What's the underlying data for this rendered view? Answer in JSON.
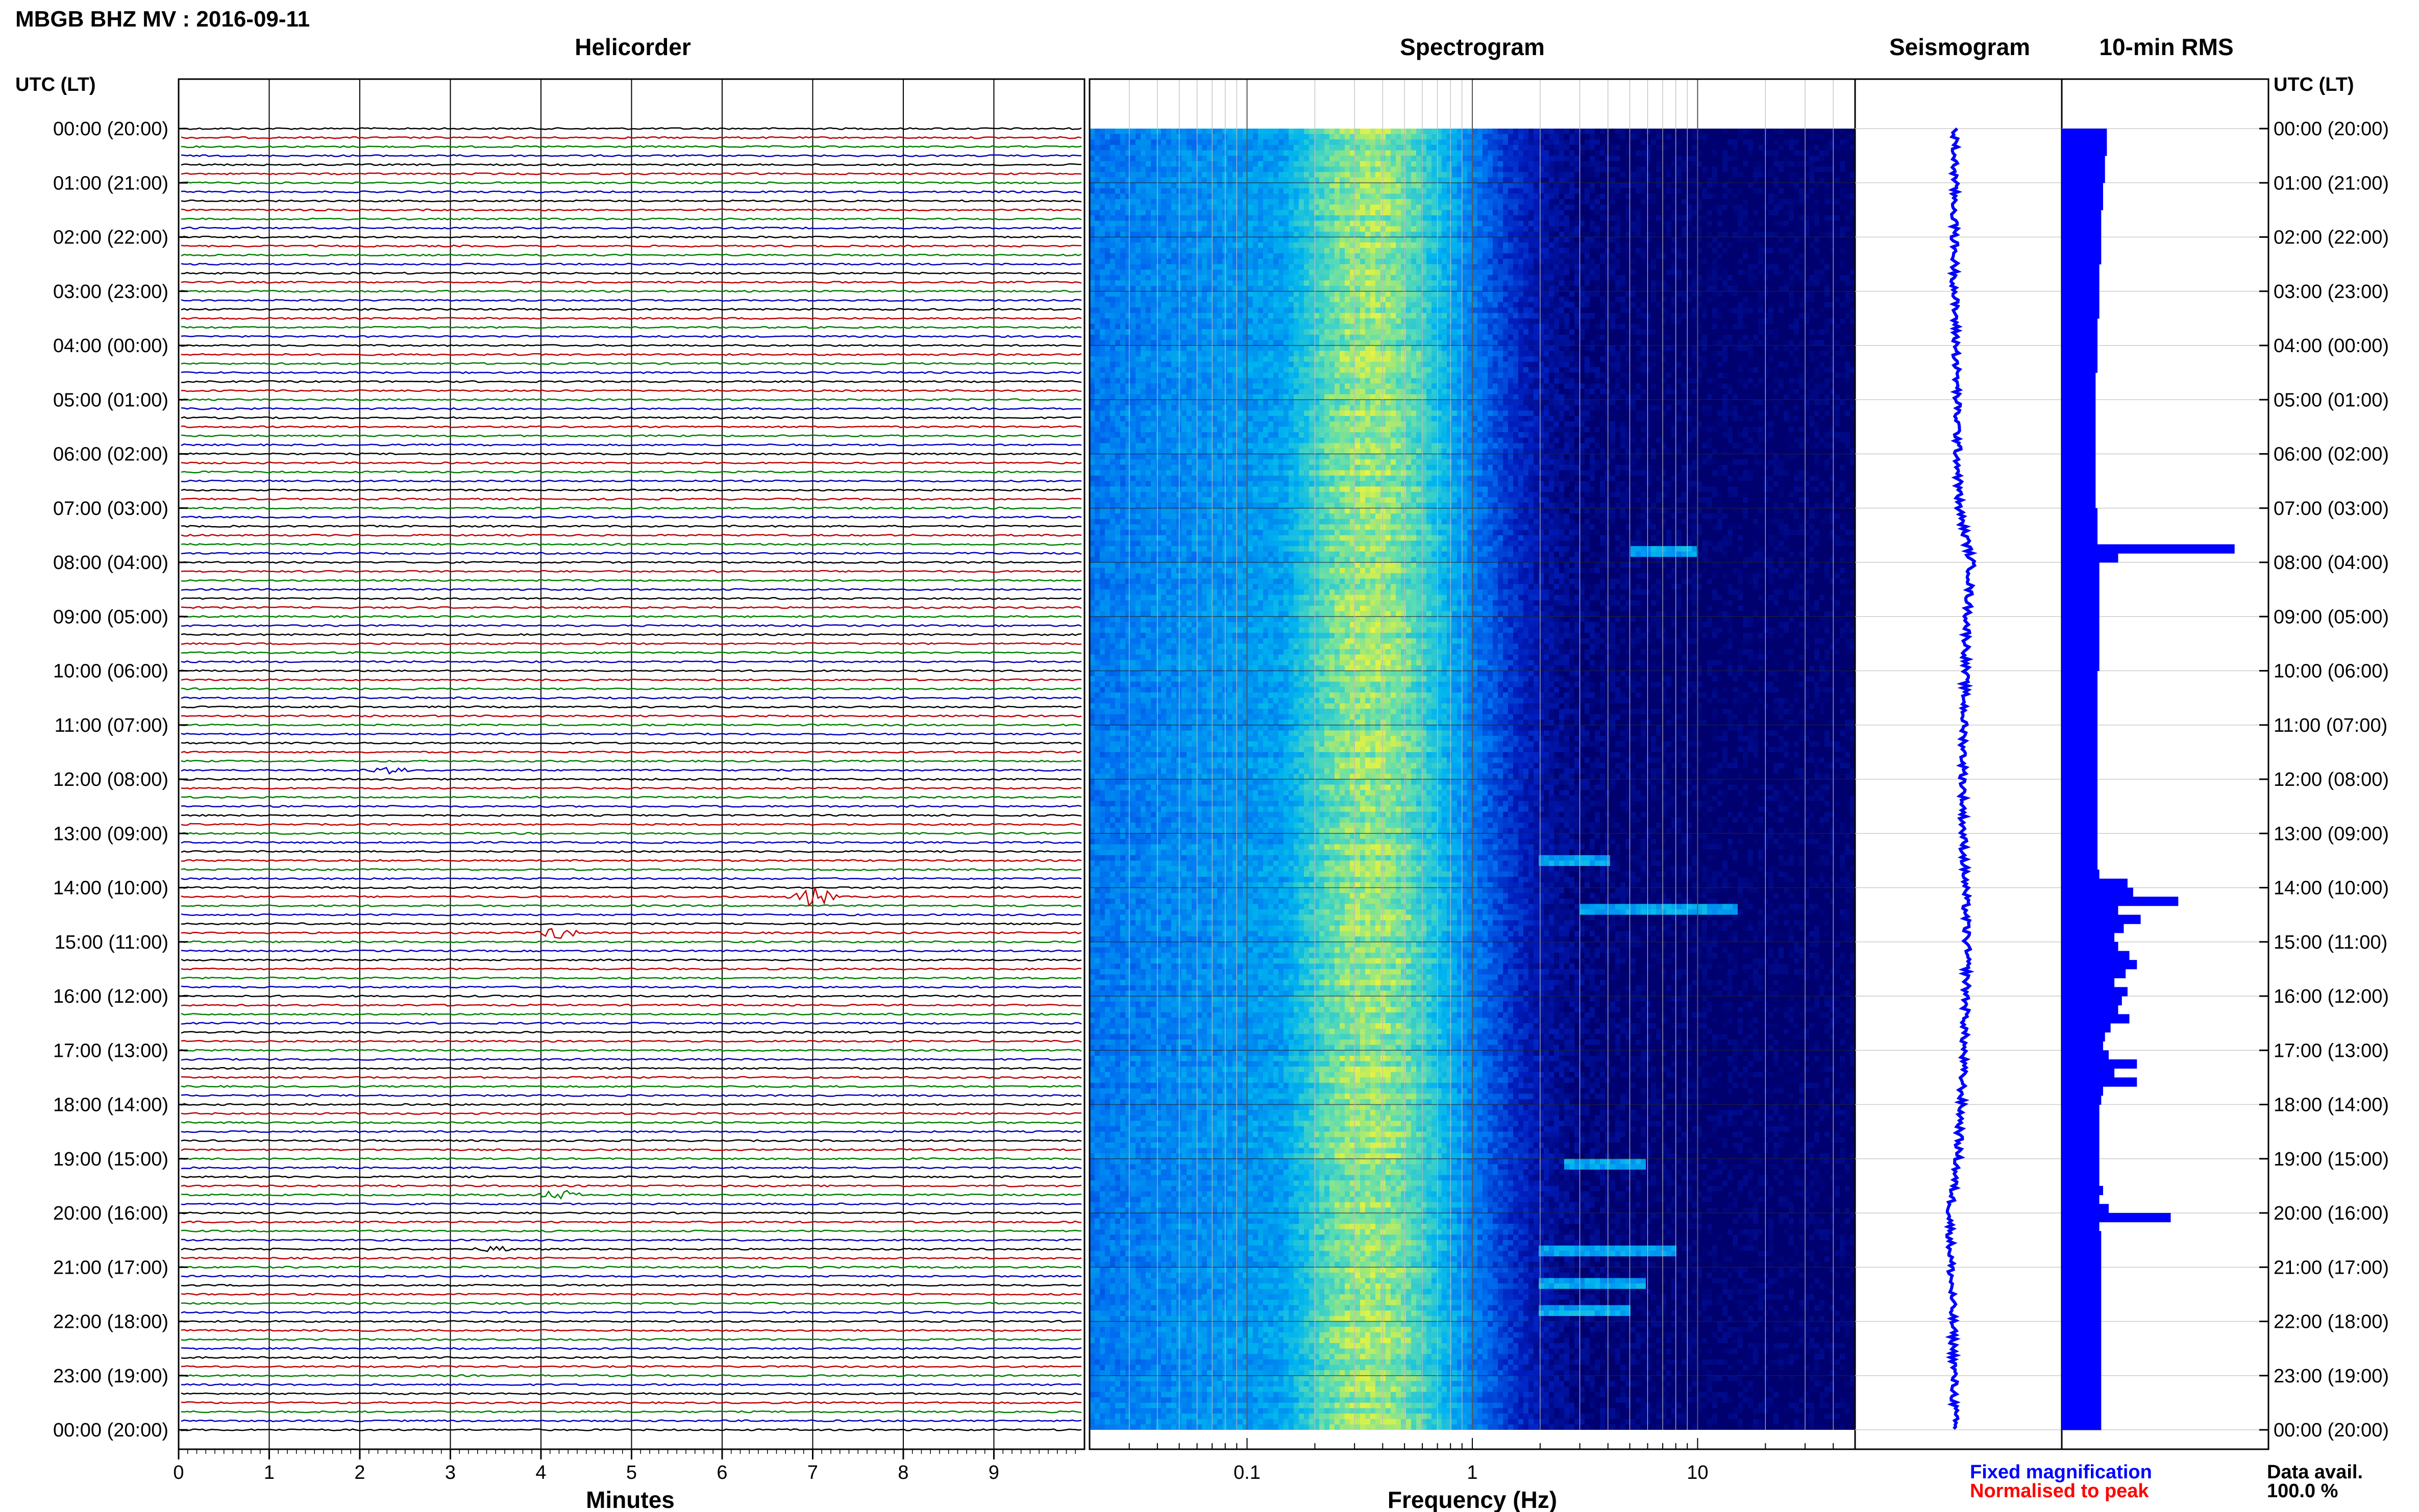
{
  "title": "MBGB BHZ MV : 2016-09-11",
  "left_header": "UTC (LT)",
  "right_header": "UTC (LT)",
  "panels": {
    "helicorder": "Helicorder",
    "spectrogram": "Spectrogram",
    "seismogram": "Seismogram",
    "rms": "10-min RMS"
  },
  "time_labels": [
    "00:00 (20:00)",
    "01:00 (21:00)",
    "02:00 (22:00)",
    "03:00 (23:00)",
    "04:00 (00:00)",
    "05:00 (01:00)",
    "06:00 (02:00)",
    "07:00 (03:00)",
    "08:00 (04:00)",
    "09:00 (05:00)",
    "10:00 (06:00)",
    "11:00 (07:00)",
    "12:00 (08:00)",
    "13:00 (09:00)",
    "14:00 (10:00)",
    "15:00 (11:00)",
    "16:00 (12:00)",
    "17:00 (13:00)",
    "18:00 (14:00)",
    "19:00 (15:00)",
    "20:00 (16:00)",
    "21:00 (17:00)",
    "22:00 (18:00)",
    "23:00 (19:00)",
    "00:00 (20:00)"
  ],
  "helicorder": {
    "xlabel": "Minutes",
    "xticks": [
      "0",
      "1",
      "2",
      "3",
      "4",
      "5",
      "6",
      "7",
      "8",
      "9"
    ],
    "xlim": [
      0,
      10
    ],
    "trace_colors": [
      "#000000",
      "#c00000",
      "#008000",
      "#0000c0"
    ],
    "traces_per_hour": 6,
    "events": [
      {
        "hour": 11.9,
        "minute": 2.3,
        "amplitude": 0.8
      },
      {
        "hour": 14.1,
        "minute": 7.0,
        "amplitude": 2.5
      },
      {
        "hour": 14.8,
        "minute": 4.2,
        "amplitude": 1.5
      },
      {
        "hour": 19.6,
        "minute": 4.2,
        "amplitude": 1.2
      },
      {
        "hour": 20.6,
        "minute": 3.5,
        "amplitude": 0.6
      }
    ]
  },
  "spectrogram": {
    "xlabel": "Frequency (Hz)",
    "scale": "log",
    "xlim": [
      0.02,
      50
    ],
    "xticks": [
      "0.1",
      "1",
      "10"
    ],
    "peak_hz": 0.35,
    "tremor_bands": [
      {
        "hour": 7.8,
        "f": [
          5,
          10
        ]
      },
      {
        "hour": 13.5,
        "f": [
          2,
          4
        ]
      },
      {
        "hour": 14.4,
        "f": [
          3,
          15
        ]
      },
      {
        "hour": 19.1,
        "f": [
          2.5,
          6
        ]
      },
      {
        "hour": 20.7,
        "f": [
          2,
          8
        ]
      },
      {
        "hour": 21.3,
        "f": [
          2,
          6
        ]
      },
      {
        "hour": 21.8,
        "f": [
          2,
          5
        ]
      }
    ]
  },
  "seismogram": {
    "color": "#0000ff",
    "offsets": [
      0.0,
      0.0,
      0.0,
      0.0,
      0.05,
      0.08,
      0.1,
      0.15,
      0.55,
      0.42,
      0.35,
      0.3,
      0.28,
      0.28,
      0.35,
      0.4,
      0.38,
      0.3,
      0.22,
      0.1,
      -0.15,
      -0.12,
      -0.06,
      -0.02,
      0.0
    ]
  },
  "rms": {
    "color": "#0000ff",
    "values": [
      0.24,
      0.24,
      0.24,
      0.23,
      0.23,
      0.23,
      0.22,
      0.22,
      0.22,
      0.21,
      0.21,
      0.21,
      0.21,
      0.21,
      0.21,
      0.2,
      0.2,
      0.2,
      0.2,
      0.2,
      0.2,
      0.19,
      0.19,
      0.19,
      0.19,
      0.19,
      0.19,
      0.18,
      0.18,
      0.18,
      0.18,
      0.18,
      0.18,
      0.18,
      0.18,
      0.18,
      0.18,
      0.18,
      0.18,
      0.18,
      0.18,
      0.18,
      0.19,
      0.19,
      0.19,
      0.19,
      0.92,
      0.3,
      0.2,
      0.2,
      0.2,
      0.2,
      0.2,
      0.2,
      0.2,
      0.2,
      0.2,
      0.2,
      0.2,
      0.2,
      0.19,
      0.19,
      0.19,
      0.19,
      0.19,
      0.19,
      0.19,
      0.19,
      0.19,
      0.19,
      0.19,
      0.19,
      0.19,
      0.19,
      0.19,
      0.19,
      0.19,
      0.19,
      0.19,
      0.19,
      0.19,
      0.19,
      0.2,
      0.35,
      0.38,
      0.62,
      0.3,
      0.42,
      0.33,
      0.28,
      0.3,
      0.36,
      0.4,
      0.34,
      0.28,
      0.35,
      0.32,
      0.3,
      0.36,
      0.26,
      0.23,
      0.22,
      0.25,
      0.4,
      0.28,
      0.4,
      0.22,
      0.21,
      0.2,
      0.2,
      0.2,
      0.2,
      0.2,
      0.2,
      0.2,
      0.2,
      0.2,
      0.22,
      0.2,
      0.25,
      0.58,
      0.2,
      0.21,
      0.21,
      0.21,
      0.21,
      0.21,
      0.21,
      0.21,
      0.21,
      0.21,
      0.21,
      0.21,
      0.21,
      0.21,
      0.21,
      0.21,
      0.21,
      0.21,
      0.21,
      0.21,
      0.21,
      0.21,
      0.21
    ],
    "xmax": 1.1
  },
  "legend": {
    "fixed": "Fixed magnification",
    "fixed_color": "#0000ff",
    "normalised": "Normalised to peak",
    "normalised_color": "#ff0000"
  },
  "data_avail": {
    "label": "Data avail.",
    "value": "100.0 %"
  }
}
